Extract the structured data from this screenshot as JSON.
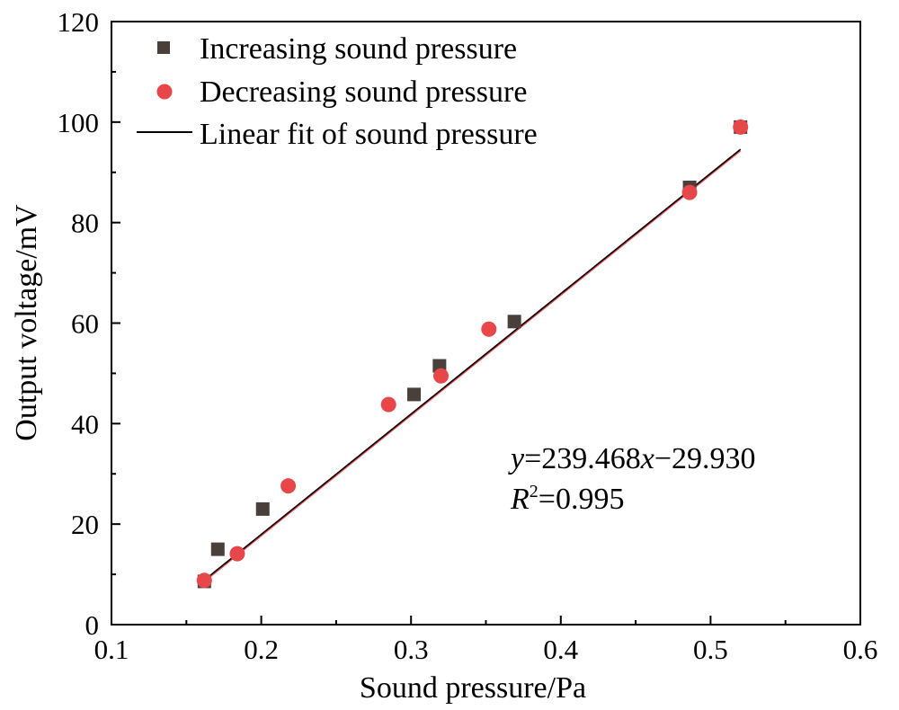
{
  "chart_data": {
    "type": "scatter",
    "title": "",
    "xlabel": "Sound pressure/Pa",
    "ylabel": "Output voltage/mV",
    "xlim": [
      0.1,
      0.6
    ],
    "ylim": [
      0,
      120
    ],
    "xticks": [
      0.1,
      0.2,
      0.3,
      0.4,
      0.5,
      0.6
    ],
    "xtick_labels": [
      "0.1",
      "0.2",
      "0.3",
      "0.4",
      "0.5",
      "0.6"
    ],
    "yticks": [
      0,
      20,
      40,
      60,
      80,
      100,
      120
    ],
    "ytick_labels": [
      "0",
      "20",
      "40",
      "60",
      "80",
      "100",
      "120"
    ],
    "grid": false,
    "legend_position": "top-left",
    "series": [
      {
        "name": "Increasing sound pressure",
        "marker": "square",
        "color": "#4a403b",
        "x": [
          0.162,
          0.171,
          0.201,
          0.302,
          0.319,
          0.369,
          0.486,
          0.52
        ],
        "y": [
          8.6,
          15.0,
          23.0,
          45.8,
          51.5,
          60.3,
          87.0,
          99.0
        ]
      },
      {
        "name": "Decreasing sound pressure",
        "marker": "circle",
        "color": "#e8474a",
        "x": [
          0.162,
          0.184,
          0.218,
          0.285,
          0.32,
          0.352,
          0.486,
          0.52
        ],
        "y": [
          8.8,
          14.1,
          27.6,
          43.8,
          49.5,
          58.8,
          86.0,
          99.0
        ]
      },
      {
        "name": "Linear fit of sound pressure",
        "type": "line",
        "color": "#000000",
        "secondary_color": "#e8474a",
        "slope": 239.468,
        "intercept": -29.93,
        "x_range": [
          0.162,
          0.52
        ]
      }
    ],
    "annotations": {
      "equation_y": "y",
      "equation_rest1": "=239.468",
      "equation_x": "x",
      "equation_rest2": "−29.930",
      "r2_prefix": "R",
      "r2_sup": "2",
      "r2_value": "=0.995"
    }
  }
}
